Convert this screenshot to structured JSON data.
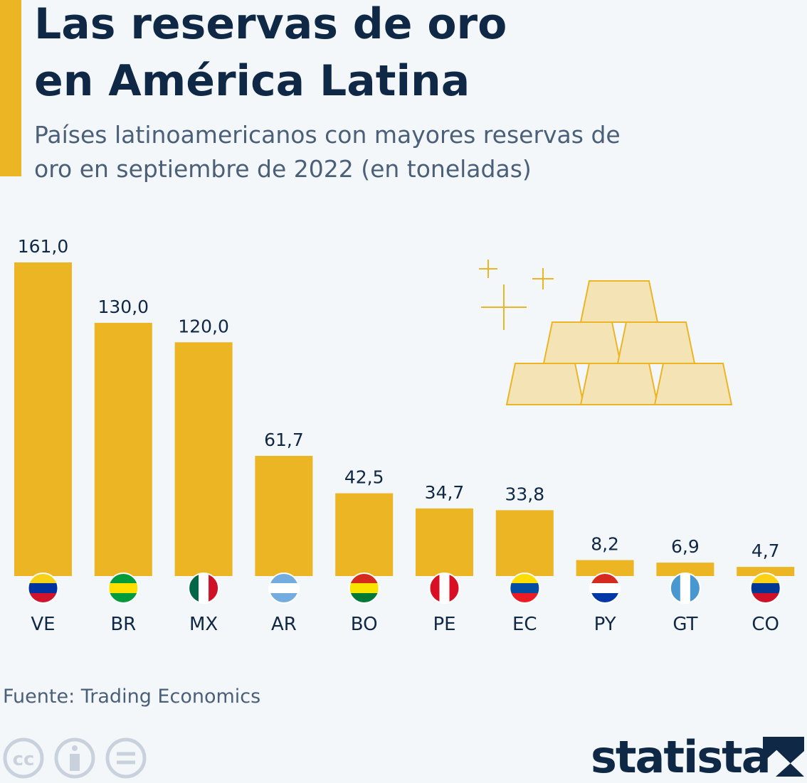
{
  "chart_data": {
    "type": "bar",
    "title": "Las reservas de oro en América Latina",
    "subtitle": "Países latinoamericanos con mayores reservas de oro en septiembre de 2022 (en toneladas)",
    "categories": [
      "VE",
      "BR",
      "MX",
      "AR",
      "BO",
      "PE",
      "EC",
      "PY",
      "GT",
      "CO"
    ],
    "values": [
      161.0,
      130.0,
      120.0,
      61.7,
      42.5,
      34.7,
      33.8,
      8.2,
      6.9,
      4.7
    ],
    "value_labels": [
      "161,0",
      "130,0",
      "120,0",
      "61,7",
      "42,5",
      "34,7",
      "33,8",
      "8,2",
      "6,9",
      "4,7"
    ],
    "color": "#ecb524",
    "source": "Fuente: Trading Economics"
  },
  "branding": {
    "logo": "statista",
    "license": "cc"
  }
}
